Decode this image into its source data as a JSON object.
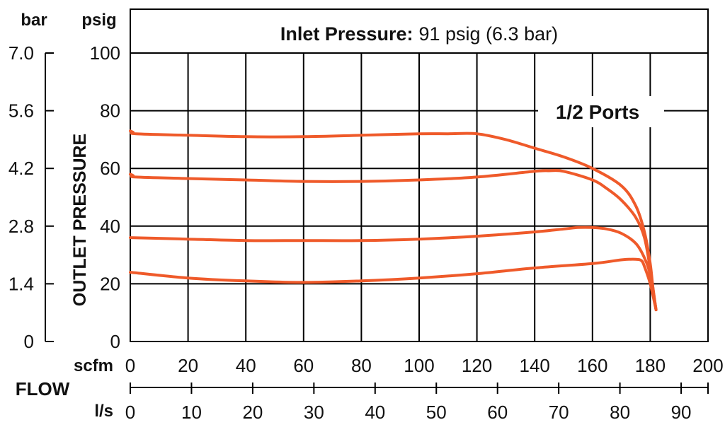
{
  "chart_data": {
    "type": "line",
    "title_bold": "Inlet Pressure:",
    "title_regular": "91 psig (6.3 bar)",
    "ylabel": "OUTLET PRESSURE",
    "xlabel": "FLOW",
    "annotation": "1/2 Ports",
    "units": {
      "x_primary": "scfm",
      "x_secondary": "l/s",
      "y_primary": "psig",
      "y_secondary": "bar"
    },
    "x_primary_ticks": [
      0,
      20,
      40,
      60,
      80,
      100,
      120,
      140,
      160,
      180,
      200
    ],
    "x_secondary_ticks": [
      0,
      10,
      20,
      30,
      40,
      50,
      60,
      70,
      80,
      90
    ],
    "y_primary_ticks": [
      0,
      20,
      40,
      60,
      80,
      100
    ],
    "y_secondary_ticks": [
      "0",
      "1.4",
      "2.8",
      "4.2",
      "5.6",
      "7.0"
    ],
    "xlim": [
      0,
      200
    ],
    "ylim": [
      0,
      100
    ],
    "grid": true,
    "line_color": "#ef5a2a",
    "series": [
      {
        "x": [
          0,
          1,
          2,
          20,
          40,
          60,
          80,
          100,
          110,
          120,
          130,
          140,
          150,
          160,
          170,
          175,
          178,
          180,
          181,
          182
        ],
        "y": [
          73,
          72.5,
          72,
          71.5,
          71,
          71,
          71.5,
          72,
          72,
          72,
          70,
          67,
          64,
          60,
          54,
          47,
          38,
          27,
          18,
          11
        ]
      },
      {
        "x": [
          0,
          1,
          2,
          20,
          40,
          60,
          80,
          100,
          120,
          140,
          145,
          150,
          160,
          165,
          170,
          175,
          178,
          180,
          182
        ],
        "y": [
          58,
          57.5,
          57,
          56.5,
          56,
          55.5,
          55.5,
          56,
          57,
          59,
          59.2,
          59,
          56,
          53,
          49,
          43,
          36,
          25,
          11
        ]
      },
      {
        "x": [
          0,
          20,
          40,
          60,
          80,
          100,
          120,
          140,
          150,
          155,
          160,
          165,
          170,
          175,
          178,
          180,
          182
        ],
        "y": [
          36,
          35.5,
          35,
          35,
          35,
          35.5,
          36.5,
          38,
          39,
          39.5,
          39.5,
          39,
          37.5,
          34,
          29,
          23,
          11
        ]
      },
      {
        "x": [
          0,
          20,
          40,
          60,
          80,
          100,
          120,
          140,
          160,
          170,
          175,
          177,
          178,
          180,
          182
        ],
        "y": [
          24,
          22,
          21,
          20.5,
          21,
          22,
          23.5,
          25.5,
          27,
          28.3,
          28.5,
          28,
          26,
          20,
          11
        ]
      }
    ]
  }
}
